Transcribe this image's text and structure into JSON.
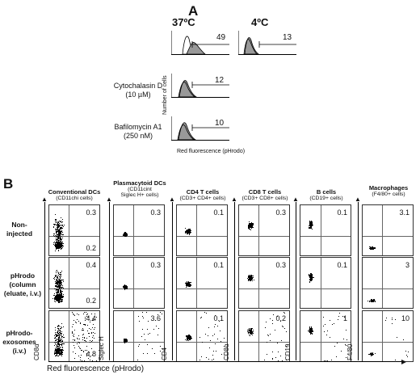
{
  "panel_a": {
    "letter": "A",
    "col_37": "37ºC",
    "col_4": "4ºC",
    "rows": [
      {
        "label_line1": "",
        "label_line2": "",
        "val_37": "49",
        "val_4": "13"
      },
      {
        "label_line1": "Cytochalasin  D",
        "label_line2": "(10 µM)",
        "val_37": "12"
      },
      {
        "label_line1": "Bafilomycin A1",
        "label_line2": "(250 nM)",
        "val_37": "10"
      }
    ],
    "y_axis": "Number of cells",
    "x_axis": "Red fluorescence (pHrodo)"
  },
  "panel_b": {
    "letter": "B",
    "x_axis": "Red fluorescence (pHrodo)",
    "rows": [
      {
        "line1": "Non-",
        "line2": "injected",
        "line3": ""
      },
      {
        "line1": "pHrodo",
        "line2": "(column",
        "line3": "(eluate, i.v.)"
      },
      {
        "line1": "pHrodo-",
        "line2": "exosomes",
        "line3": "(i.v.)"
      }
    ],
    "columns": [
      {
        "title": "Conventional DCs",
        "sub1": "(CD11chi cells)",
        "sub2": "",
        "ylabel": "CD8α",
        "values": [
          [
            "0.3",
            "0.2"
          ],
          [
            "0.4",
            "0.2"
          ],
          [
            "4.4",
            "4.8"
          ]
        ]
      },
      {
        "title": "Plasmacytoid DCs",
        "sub1": "(CD11cint",
        "sub2": "Siglec H+ cells)",
        "ylabel": "Siglec H",
        "values": [
          [
            "0.3"
          ],
          [
            "0.3"
          ],
          [
            "3.6"
          ]
        ]
      },
      {
        "title": "CD4 T cells",
        "sub1": "(CD3+ CD4+ cells)",
        "sub2": "",
        "ylabel": "CD4",
        "values": [
          [
            "0.1"
          ],
          [
            "0.1"
          ],
          [
            "0.1"
          ]
        ]
      },
      {
        "title": "CD8 T cells",
        "sub1": "(CD3+ CD8+ cells)",
        "sub2": "",
        "ylabel": "CD8α",
        "values": [
          [
            "0.3"
          ],
          [
            "0.3"
          ],
          [
            "0.2"
          ]
        ]
      },
      {
        "title": "B cells",
        "sub1": "(CD19+ cells)",
        "sub2": "",
        "ylabel": "CD19",
        "values": [
          [
            "0.1"
          ],
          [
            "0.1"
          ],
          [
            "1"
          ]
        ]
      },
      {
        "title": "Macrophages",
        "sub1": "(F4/80+ cells)",
        "sub2": "",
        "ylabel": "F4/80",
        "values": [
          [
            "3.1"
          ],
          [
            "3"
          ],
          [
            "10"
          ]
        ]
      }
    ]
  }
}
